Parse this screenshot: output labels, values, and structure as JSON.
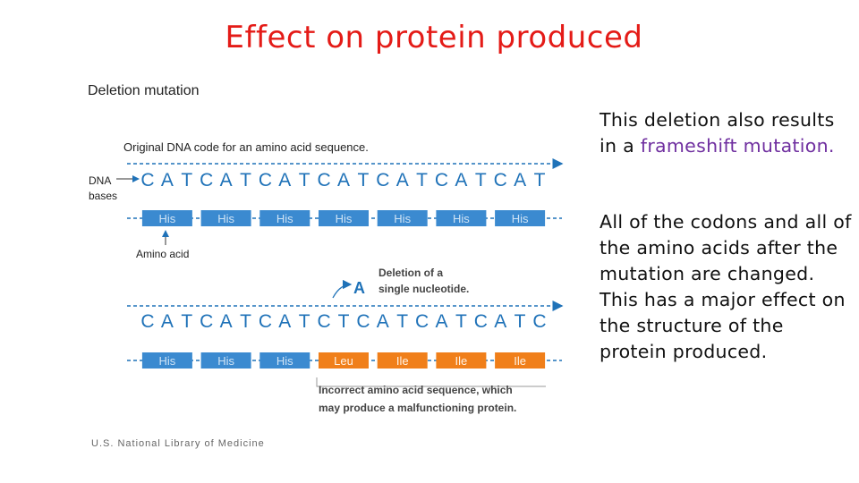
{
  "title": "Effect on protein produced",
  "diagram": {
    "heading": "Deletion mutation",
    "original_caption": "Original DNA code for an amino acid sequence.",
    "dna_label": [
      "DNA",
      "bases"
    ],
    "amino_label": "Amino acid",
    "original_bases": [
      "C",
      "A",
      "T",
      "C",
      "A",
      "T",
      "C",
      "A",
      "T",
      "C",
      "A",
      "T",
      "C",
      "A",
      "T",
      "C",
      "A",
      "T",
      "C",
      "A",
      "T"
    ],
    "original_aminos": [
      "His",
      "His",
      "His",
      "His",
      "His",
      "His",
      "His"
    ],
    "deleted_base": "A",
    "deletion_caption": [
      "Deletion of a",
      "single nucleotide."
    ],
    "mutated_bases": [
      "C",
      "A",
      "T",
      "C",
      "A",
      "T",
      "C",
      "A",
      "T",
      "C",
      "T",
      "C",
      "A",
      "T",
      "C",
      "A",
      "T",
      "C",
      "A",
      "T",
      "C"
    ],
    "mutated_aminos": [
      "His",
      "His",
      "His",
      "Leu",
      "Ile",
      "Ile",
      "Ile"
    ],
    "mutated_amino_status": [
      "normal",
      "normal",
      "normal",
      "changed",
      "changed",
      "changed",
      "changed"
    ],
    "incorrect_caption": [
      "Incorrect amino acid sequence, which",
      "may produce a malfunctioning protein."
    ],
    "credit": "U.S. National Library of Medicine",
    "colors": {
      "base_text": "#1f72b8",
      "amino_fill": "#3b8ad0",
      "amino_text": "#cfe3f5",
      "changed_fill": "#f07f1a",
      "changed_text": "#fff3e6",
      "arrow": "#1f72b8"
    }
  },
  "text": {
    "para1_a": "This deletion also results in a ",
    "para1_hl": "frameshift mutation.",
    "para2": "All of the codons and all of the amino acids after the mutation are changed. This has a major effect on the structure of the protein produced."
  }
}
